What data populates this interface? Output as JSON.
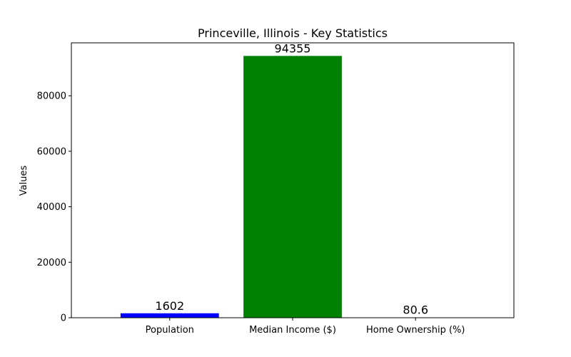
{
  "chart_data": {
    "type": "bar",
    "title": "Princeville, Illinois - Key Statistics",
    "xlabel": "",
    "ylabel": "Values",
    "categories": [
      "Population",
      "Median Income ($)",
      "Home Ownership (%)"
    ],
    "values": [
      1602,
      94355,
      80.6
    ],
    "data_labels": [
      "1602",
      "94355",
      "80.6"
    ],
    "colors": [
      "#0000ff",
      "#008000",
      "#ff0000"
    ],
    "ylim": [
      0,
      99073
    ],
    "yticks": [
      0,
      20000,
      40000,
      60000,
      80000
    ],
    "ytick_labels": [
      "0",
      "20000",
      "40000",
      "60000",
      "80000"
    ],
    "grid": false,
    "legend": "none"
  }
}
